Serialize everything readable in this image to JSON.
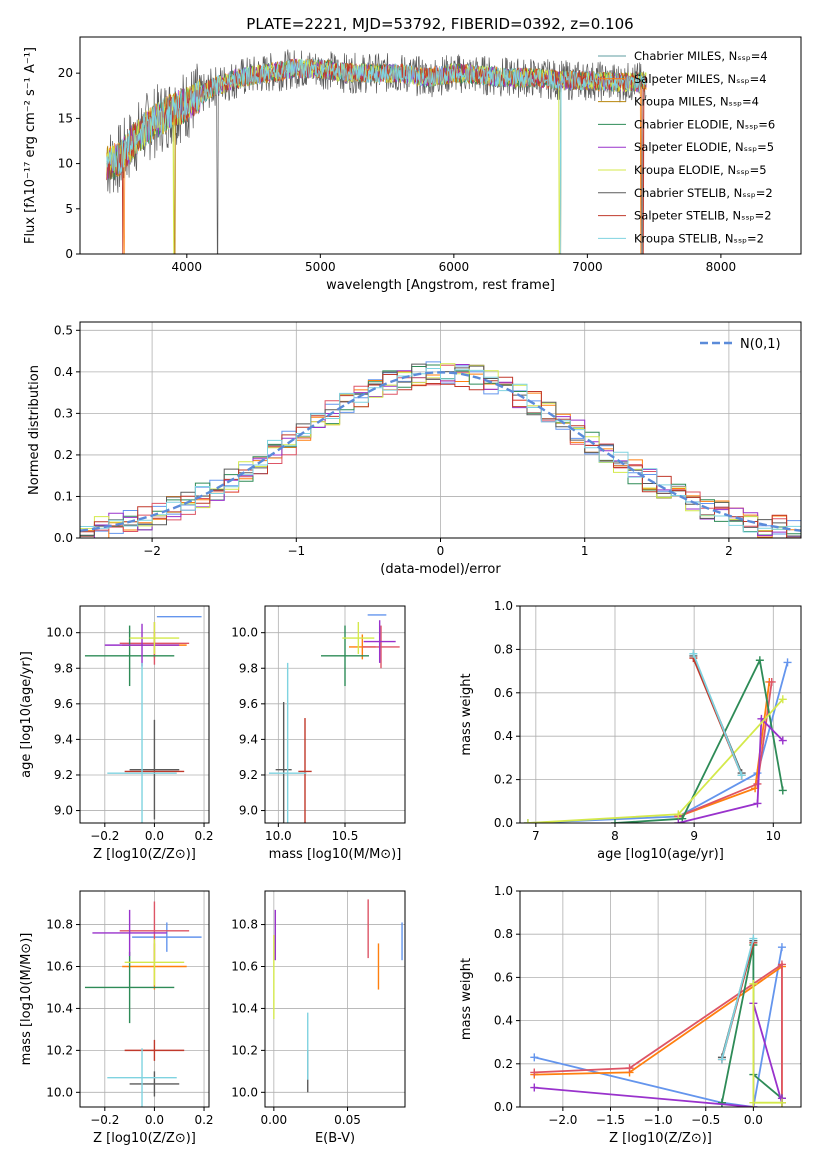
{
  "title": "PLATE=2221, MJD=53792, FIBERID=0392, z=0.106",
  "chart_data": [
    {
      "id": "spectrum",
      "type": "line",
      "xlabel": "wavelength [Angstrom, rest frame]",
      "ylabel": "Flux [fλ10⁻¹⁷ erg cm⁻² s⁻¹ A⁻¹]",
      "xlim": [
        3200,
        8600
      ],
      "ylim": [
        0,
        24
      ],
      "xticks": [
        4000,
        5000,
        6000,
        7000,
        8000
      ],
      "yticks": [
        0,
        5,
        10,
        15,
        20
      ],
      "grid": false,
      "legend_position": "upper-right",
      "continuum": {
        "x": [
          3400,
          3500,
          3600,
          3700,
          3800,
          3900,
          4000,
          4100,
          4200,
          4400,
          4600,
          4800,
          5000,
          5200,
          5400,
          5600,
          5800,
          6000,
          6200,
          6400,
          6600,
          6800,
          7000,
          7200,
          7400
        ],
        "y": [
          10,
          10.5,
          12.5,
          14,
          15,
          16,
          16.5,
          17.5,
          18.5,
          19.5,
          20,
          20.5,
          20.5,
          20,
          20,
          20,
          19.5,
          20,
          19.8,
          19.5,
          19.5,
          19.2,
          19.2,
          19,
          19
        ]
      },
      "series": [
        {
          "name": "Chabrier MILES, Nₛₛₚ=4",
          "color": "#5f9ea0"
        },
        {
          "name": "Salpeter MILES, Nₛₛₚ=4",
          "color": "#ff7f0e"
        },
        {
          "name": "Kroupa MILES, Nₛₛₚ=4",
          "color": "#b8860b"
        },
        {
          "name": "Chabrier ELODIE, Nₛₛₚ=6",
          "color": "#2e8b57"
        },
        {
          "name": "Salpeter ELODIE, Nₛₛₚ=5",
          "color": "#9932cc"
        },
        {
          "name": "Kroupa ELODIE, Nₛₛₚ=5",
          "color": "#d4e94b"
        },
        {
          "name": "Chabrier STELIB, Nₛₛₚ=2",
          "color": "#5a5a5a"
        },
        {
          "name": "Salpeter STELIB, Nₛₛₚ=2",
          "color": "#c0392b"
        },
        {
          "name": "Kroupa STELIB, Nₛₛₚ=2",
          "color": "#7fd3e0"
        }
      ]
    },
    {
      "id": "residuals",
      "type": "histogram",
      "xlabel": "(data-model)/error",
      "ylabel": "Normed distribution",
      "xlim": [
        -2.5,
        2.5
      ],
      "ylim": [
        0,
        0.52
      ],
      "xticks": [
        -2,
        -1,
        0,
        1,
        2
      ],
      "yticks": [
        0.0,
        0.1,
        0.2,
        0.3,
        0.4,
        0.5
      ],
      "grid": true,
      "legend_position": "upper-right",
      "legend": "N(0,1)",
      "reference_curve": "normal(0,1)",
      "bin_width": 0.1,
      "colors": [
        "#6495ed",
        "#ff7f0e",
        "#dd5566",
        "#2e8b57",
        "#9932cc",
        "#d4e94b",
        "#5a5a5a",
        "#c0392b",
        "#7fd3e0"
      ]
    },
    {
      "id": "age-vs-Z",
      "type": "errorbar",
      "xlabel": "Z [log10(Z/Z⊙)]",
      "ylabel": "age  [log10(age/yr)]",
      "xlim": [
        -0.3,
        0.22
      ],
      "ylim": [
        8.93,
        10.15
      ],
      "xticks": [
        -0.2,
        0.0,
        0.2
      ],
      "yticks": [
        9.0,
        9.2,
        9.4,
        9.6,
        9.8,
        10.0
      ],
      "grid": true,
      "points": [
        {
          "x": 0.1,
          "xerr": 0.09,
          "y": 10.09,
          "yerr": 0.0,
          "color": "#6495ed"
        },
        {
          "x": 0.0,
          "xerr": 0.13,
          "y": 9.93,
          "yerr": 0.07,
          "color": "#ff7f0e"
        },
        {
          "x": 0.0,
          "xerr": 0.14,
          "y": 9.94,
          "yerr": 0.12,
          "color": "#dd5566"
        },
        {
          "x": -0.1,
          "xerr": 0.18,
          "y": 9.87,
          "yerr": 0.17,
          "color": "#2e8b57"
        },
        {
          "x": -0.05,
          "xerr": 0.15,
          "y": 9.93,
          "yerr": 0.12,
          "color": "#9932cc"
        },
        {
          "x": 0.0,
          "xerr": 0.1,
          "y": 9.97,
          "yerr": 0.09,
          "color": "#d4e94b"
        },
        {
          "x": 0.0,
          "xerr": 0.1,
          "y": 9.23,
          "yerr": 0.28,
          "color": "#5a5a5a"
        },
        {
          "x": 0.0,
          "xerr": 0.12,
          "y": 9.22,
          "yerr": 0.0,
          "color": "#c0392b"
        },
        {
          "x": -0.05,
          "xerr": 0.14,
          "y": 9.21,
          "yerr": 0.62,
          "color": "#7fd3e0"
        }
      ]
    },
    {
      "id": "age-vs-mass",
      "type": "errorbar",
      "xlabel": "mass [log10(M/M⊙)]",
      "ylabel": "",
      "xlim": [
        9.9,
        10.95
      ],
      "ylim": [
        8.93,
        10.15
      ],
      "xticks": [
        10.0,
        10.5
      ],
      "yticks": [
        9.0,
        9.2,
        9.4,
        9.6,
        9.8,
        10.0
      ],
      "grid": true,
      "points": [
        {
          "x": 10.74,
          "xerr": 0.07,
          "y": 10.1,
          "yerr": 0.0,
          "color": "#6495ed"
        },
        {
          "x": 10.63,
          "xerr": 0.1,
          "y": 9.92,
          "yerr": 0.07,
          "color": "#ff7f0e"
        },
        {
          "x": 10.77,
          "xerr": 0.14,
          "y": 9.92,
          "yerr": 0.12,
          "color": "#dd5566"
        },
        {
          "x": 10.5,
          "xerr": 0.18,
          "y": 9.87,
          "yerr": 0.17,
          "color": "#2e8b57"
        },
        {
          "x": 10.76,
          "xerr": 0.12,
          "y": 9.95,
          "yerr": 0.12,
          "color": "#9932cc"
        },
        {
          "x": 10.6,
          "xerr": 0.12,
          "y": 9.97,
          "yerr": 0.09,
          "color": "#d4e94b"
        },
        {
          "x": 10.04,
          "xerr": 0.06,
          "y": 9.23,
          "yerr": 0.38,
          "color": "#5a5a5a"
        },
        {
          "x": 10.2,
          "xerr": 0.05,
          "y": 9.22,
          "yerr": 0.3,
          "color": "#c0392b"
        },
        {
          "x": 10.07,
          "xerr": 0.14,
          "y": 9.21,
          "yerr": 0.62,
          "color": "#7fd3e0"
        }
      ]
    },
    {
      "id": "mass-weight-vs-age",
      "type": "line",
      "xlabel": "age  [log10(age/yr)]",
      "ylabel": "mass weight",
      "xlim": [
        6.8,
        10.35
      ],
      "ylim": [
        0,
        1
      ],
      "xticks": [
        7,
        8,
        9,
        10
      ],
      "yticks": [
        0.0,
        0.2,
        0.4,
        0.6,
        0.8,
        1.0
      ],
      "grid": true,
      "series": [
        {
          "color": "#6495ed",
          "x": [
            6.9,
            8.8,
            9.8,
            10.18
          ],
          "y": [
            0.0,
            0.03,
            0.23,
            0.74
          ]
        },
        {
          "color": "#ff7f0e",
          "x": [
            8.8,
            9.77,
            9.95
          ],
          "y": [
            0.03,
            0.16,
            0.65
          ]
        },
        {
          "color": "#dd5566",
          "x": [
            8.8,
            9.8,
            9.98
          ],
          "y": [
            0.03,
            0.18,
            0.65
          ]
        },
        {
          "color": "#2e8b57",
          "x": [
            8.0,
            8.85,
            9.83,
            10.12
          ],
          "y": [
            0.0,
            0.02,
            0.75,
            0.15
          ]
        },
        {
          "color": "#9932cc",
          "x": [
            8.8,
            9.8,
            9.85,
            10.12
          ],
          "y": [
            0.0,
            0.09,
            0.48,
            0.38
          ]
        },
        {
          "color": "#d4e94b",
          "x": [
            6.9,
            8.8,
            10.12
          ],
          "y": [
            0.0,
            0.04,
            0.57
          ]
        },
        {
          "color": "#5a5a5a",
          "x": [
            8.99,
            9.6
          ],
          "y": [
            0.77,
            0.23
          ]
        },
        {
          "color": "#c0392b",
          "x": [
            8.99,
            9.6
          ],
          "y": [
            0.76,
            0.22
          ]
        },
        {
          "color": "#7fd3e0",
          "x": [
            8.99,
            9.6
          ],
          "y": [
            0.78,
            0.22
          ]
        }
      ]
    },
    {
      "id": "mass-vs-Z",
      "type": "errorbar",
      "xlabel": "Z [log10(Z/Z⊙)]",
      "ylabel": "mass [log10(M/M⊙)]",
      "xlim": [
        -0.3,
        0.22
      ],
      "ylim": [
        9.93,
        10.96
      ],
      "xticks": [
        -0.2,
        0.0,
        0.2
      ],
      "yticks": [
        10.0,
        10.2,
        10.4,
        10.6,
        10.8
      ],
      "grid": true,
      "points": [
        {
          "x": 0.05,
          "xerr": 0.14,
          "y": 10.74,
          "yerr": 0.07,
          "color": "#6495ed"
        },
        {
          "x": 0.0,
          "xerr": 0.13,
          "y": 10.6,
          "yerr": 0.11,
          "color": "#ff7f0e"
        },
        {
          "x": 0.0,
          "xerr": 0.14,
          "y": 10.77,
          "yerr": 0.14,
          "color": "#dd5566"
        },
        {
          "x": -0.1,
          "xerr": 0.18,
          "y": 10.5,
          "yerr": 0.17,
          "color": "#2e8b57"
        },
        {
          "x": -0.1,
          "xerr": 0.15,
          "y": 10.76,
          "yerr": 0.11,
          "color": "#9932cc"
        },
        {
          "x": 0.0,
          "xerr": 0.12,
          "y": 10.62,
          "yerr": 0.11,
          "color": "#d4e94b"
        },
        {
          "x": 0.0,
          "xerr": 0.1,
          "y": 10.04,
          "yerr": 0.06,
          "color": "#5a5a5a"
        },
        {
          "x": 0.0,
          "xerr": 0.12,
          "y": 10.2,
          "yerr": 0.05,
          "color": "#c0392b"
        },
        {
          "x": -0.05,
          "xerr": 0.14,
          "y": 10.07,
          "yerr": 0.14,
          "color": "#7fd3e0"
        }
      ]
    },
    {
      "id": "mass-vs-ebv",
      "type": "errorbar",
      "xlabel": "E(B-V)",
      "ylabel": "",
      "xlim": [
        -0.006,
        0.089
      ],
      "ylim": [
        9.93,
        10.96
      ],
      "xticks": [
        0.0,
        0.05
      ],
      "yticks": [
        10.0,
        10.2,
        10.4,
        10.6,
        10.8
      ],
      "grid": true,
      "points": [
        {
          "x": 0.087,
          "xerr": 0.0,
          "y": 10.72,
          "yerr": 0.09,
          "color": "#6495ed"
        },
        {
          "x": 0.071,
          "xerr": 0.0,
          "y": 10.6,
          "yerr": 0.11,
          "color": "#ff7f0e"
        },
        {
          "x": 0.064,
          "xerr": 0.0,
          "y": 10.78,
          "yerr": 0.14,
          "color": "#dd5566"
        },
        {
          "x": 0.001,
          "xerr": 0.0,
          "y": 10.75,
          "yerr": 0.12,
          "color": "#9932cc"
        },
        {
          "x": 0.0,
          "xerr": 0.0,
          "y": 10.55,
          "yerr": 0.2,
          "color": "#d4e94b"
        },
        {
          "x": 0.023,
          "xerr": 0.0,
          "y": 10.1,
          "yerr": 0.1,
          "color": "#5a5a5a"
        },
        {
          "x": 0.023,
          "xerr": 0.0,
          "y": 10.22,
          "yerr": 0.16,
          "color": "#7fd3e0"
        }
      ]
    },
    {
      "id": "mass-weight-vs-Z",
      "type": "line",
      "xlabel": "Z [log10(Z/Z⊙)]",
      "ylabel": "mass weight",
      "xlim": [
        -2.45,
        0.5
      ],
      "ylim": [
        0,
        1
      ],
      "xticks": [
        -2.0,
        -1.5,
        -1.0,
        -0.5,
        0.0
      ],
      "yticks": [
        0.0,
        0.2,
        0.4,
        0.6,
        0.8,
        1.0
      ],
      "grid": true,
      "series": [
        {
          "color": "#6495ed",
          "x": [
            -2.3,
            -0.33,
            0.0,
            0.3
          ],
          "y": [
            0.23,
            0.02,
            0.0,
            0.74
          ]
        },
        {
          "color": "#ff7f0e",
          "x": [
            -2.3,
            -1.3,
            0.3,
            0.3
          ],
          "y": [
            0.15,
            0.16,
            0.65,
            0.02
          ]
        },
        {
          "color": "#dd5566",
          "x": [
            -2.3,
            -1.3,
            0.3,
            0.3
          ],
          "y": [
            0.16,
            0.18,
            0.66,
            0.02
          ]
        },
        {
          "color": "#2e8b57",
          "x": [
            -0.33,
            0.0,
            0.0,
            0.3,
            0.3
          ],
          "y": [
            0.02,
            0.75,
            0.15,
            0.04,
            0.02
          ]
        },
        {
          "color": "#9932cc",
          "x": [
            -2.3,
            0.0,
            0.0,
            0.3,
            0.3
          ],
          "y": [
            0.09,
            0.0,
            0.48,
            0.02,
            0.04
          ]
        },
        {
          "color": "#d4e94b",
          "x": [
            0.0,
            0.0,
            0.3
          ],
          "y": [
            0.57,
            0.02,
            0.02
          ]
        },
        {
          "color": "#5a5a5a",
          "x": [
            -0.33,
            0.0
          ],
          "y": [
            0.23,
            0.77
          ]
        },
        {
          "color": "#c0392b",
          "x": [
            -0.33,
            0.0
          ],
          "y": [
            0.22,
            0.76
          ]
        },
        {
          "color": "#7fd3e0",
          "x": [
            -0.33,
            0.0
          ],
          "y": [
            0.22,
            0.78
          ]
        }
      ]
    }
  ]
}
